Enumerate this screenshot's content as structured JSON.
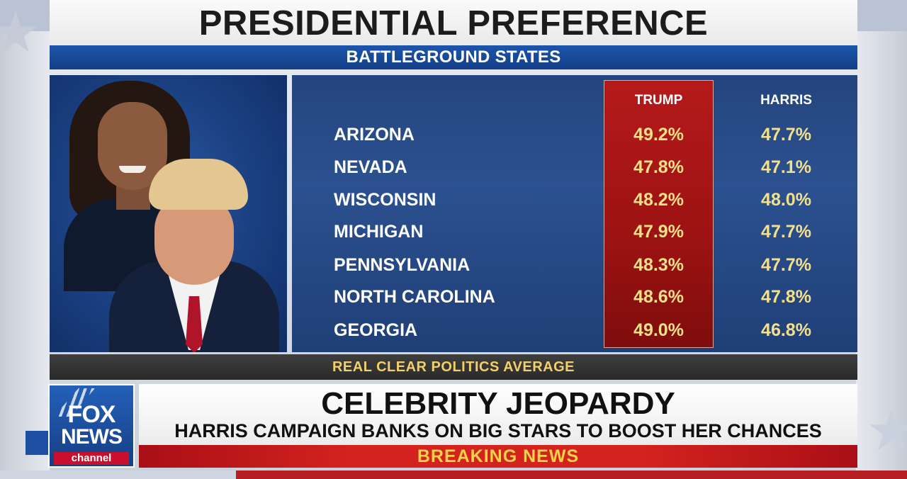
{
  "graphic": {
    "title": "PRESIDENTIAL PREFERENCE",
    "subtitle": "BATTLEGROUND STATES",
    "source": "REAL CLEAR POLITICS AVERAGE",
    "columns": {
      "trump": "TRUMP",
      "harris": "HARRIS"
    },
    "rows": [
      {
        "state": "ARIZONA",
        "trump": "49.2%",
        "harris": "47.7%"
      },
      {
        "state": "NEVADA",
        "trump": "47.8%",
        "harris": "47.1%"
      },
      {
        "state": "WISCONSIN",
        "trump": "48.2%",
        "harris": "48.0%"
      },
      {
        "state": "MICHIGAN",
        "trump": "47.9%",
        "harris": "47.7%"
      },
      {
        "state": "PENNSYLVANIA",
        "trump": "48.3%",
        "harris": "47.7%"
      },
      {
        "state": "NORTH CAROLINA",
        "trump": "48.6%",
        "harris": "47.8%"
      },
      {
        "state": "GEORGIA",
        "trump": "49.0%",
        "harris": "46.8%"
      }
    ]
  },
  "lower_third": {
    "logo": {
      "line1": "FOX",
      "line2": "NEWS",
      "line3": "channel"
    },
    "headline": "CELEBRITY JEOPARDY",
    "subhead": "HARRIS CAMPAIGN BANKS ON BIG STARS TO BOOST HER CHANCES",
    "banner": "BREAKING NEWS"
  },
  "colors": {
    "title_bar_blue": "#1c55ad",
    "trump_column_red": "#b51a1a",
    "value_gold": "#f3e08a",
    "breaking_red": "#d4231f",
    "breaking_text": "#f6d24a"
  }
}
